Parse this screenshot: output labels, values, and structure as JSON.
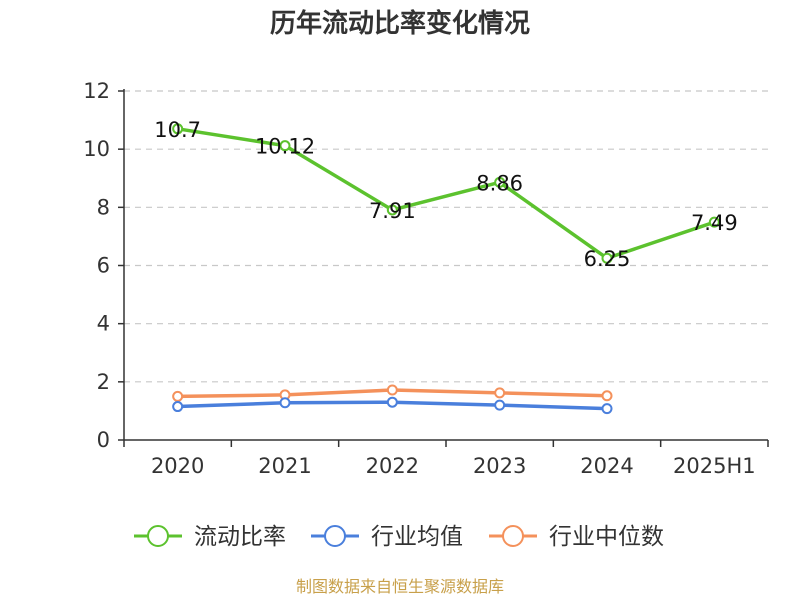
{
  "chart_data": {
    "type": "line",
    "title": "历年流动比率变化情况",
    "xlabel": "",
    "ylabel": "",
    "categories": [
      "2020",
      "2021",
      "2022",
      "2023",
      "2024",
      "2025H1"
    ],
    "ylim": [
      0,
      12
    ],
    "yticks": [
      0,
      2,
      4,
      6,
      8,
      10,
      12
    ],
    "grid": true,
    "legend_position": "bottom",
    "series": [
      {
        "name": "流动比率",
        "color": "#5cc22e",
        "values": [
          10.7,
          10.12,
          7.91,
          8.86,
          6.25,
          7.49
        ],
        "labels": [
          "10.7",
          "10.12",
          "7.91",
          "8.86",
          "6.25",
          "7.49"
        ]
      },
      {
        "name": "行业均值",
        "color": "#4a7fdc",
        "values": [
          1.15,
          1.28,
          1.3,
          1.2,
          1.08,
          null
        ]
      },
      {
        "name": "行业中位数",
        "color": "#f4915b",
        "values": [
          1.5,
          1.55,
          1.72,
          1.62,
          1.52,
          null
        ]
      }
    ]
  },
  "footer": {
    "source": "制图数据来自恒生聚源数据库"
  }
}
